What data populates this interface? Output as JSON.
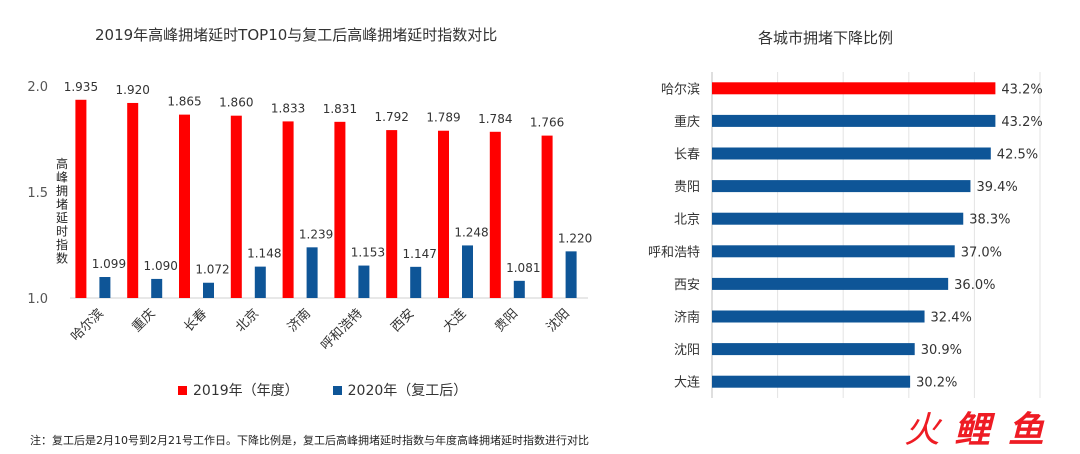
{
  "chart_data": [
    {
      "type": "bar",
      "title": "2019年高峰拥堵延时TOP10与复工后高峰拥堵延时指数对比",
      "ylabel": "高峰拥堵延时指数",
      "ylim": [
        1.0,
        2.0
      ],
      "yticks": [
        "1.0",
        "1.5",
        "2.0"
      ],
      "categories": [
        "哈尔滨",
        "重庆",
        "长春",
        "北京",
        "济南",
        "呼和浩特",
        "西安",
        "大连",
        "贵阳",
        "沈阳"
      ],
      "series": [
        {
          "name": "2019年（年度）",
          "color": "#ff0000",
          "values": [
            1.935,
            1.92,
            1.865,
            1.86,
            1.833,
            1.831,
            1.792,
            1.789,
            1.784,
            1.766
          ],
          "labels": [
            "1.935",
            "1.920",
            "1.865",
            "1.860",
            "1.833",
            "1.831",
            "1.792",
            "1.789",
            "1.784",
            "1.766"
          ]
        },
        {
          "name": "2020年（复工后）",
          "color": "#0e5597",
          "values": [
            1.099,
            1.09,
            1.072,
            1.148,
            1.239,
            1.153,
            1.147,
            1.248,
            1.081,
            1.22
          ],
          "labels": [
            "1.099",
            "1.090",
            "1.072",
            "1.148",
            "1.239",
            "1.153",
            "1.147",
            "1.248",
            "1.081",
            "1.220"
          ]
        }
      ],
      "legend": "bottom"
    },
    {
      "type": "bar",
      "orientation": "horizontal",
      "title": "各城市拥堵下降比例",
      "categories": [
        "哈尔滨",
        "重庆",
        "长春",
        "贵阳",
        "北京",
        "呼和浩特",
        "西安",
        "济南",
        "沈阳",
        "大连"
      ],
      "values": [
        43.2,
        43.2,
        42.5,
        39.4,
        38.3,
        37.0,
        36.0,
        32.4,
        30.9,
        30.2
      ],
      "labels": [
        "43.2%",
        "43.2%",
        "42.5%",
        "39.4%",
        "38.3%",
        "37.0%",
        "36.0%",
        "32.4%",
        "30.9%",
        "30.2%"
      ],
      "colors": [
        "#ff0000",
        "#0e5597",
        "#0e5597",
        "#0e5597",
        "#0e5597",
        "#0e5597",
        "#0e5597",
        "#0e5597",
        "#0e5597",
        "#0e5597"
      ],
      "xlim": [
        0,
        50
      ],
      "grid": true
    }
  ],
  "footnote": "注：复工后是2月10号到2月21号工作日。下降比例是，复工后高峰拥堵延时指数与年度高峰拥堵延时指数进行对比",
  "watermark": {
    "chars": [
      "火",
      "鲤",
      "鱼"
    ],
    "color": "#ee1c24"
  }
}
